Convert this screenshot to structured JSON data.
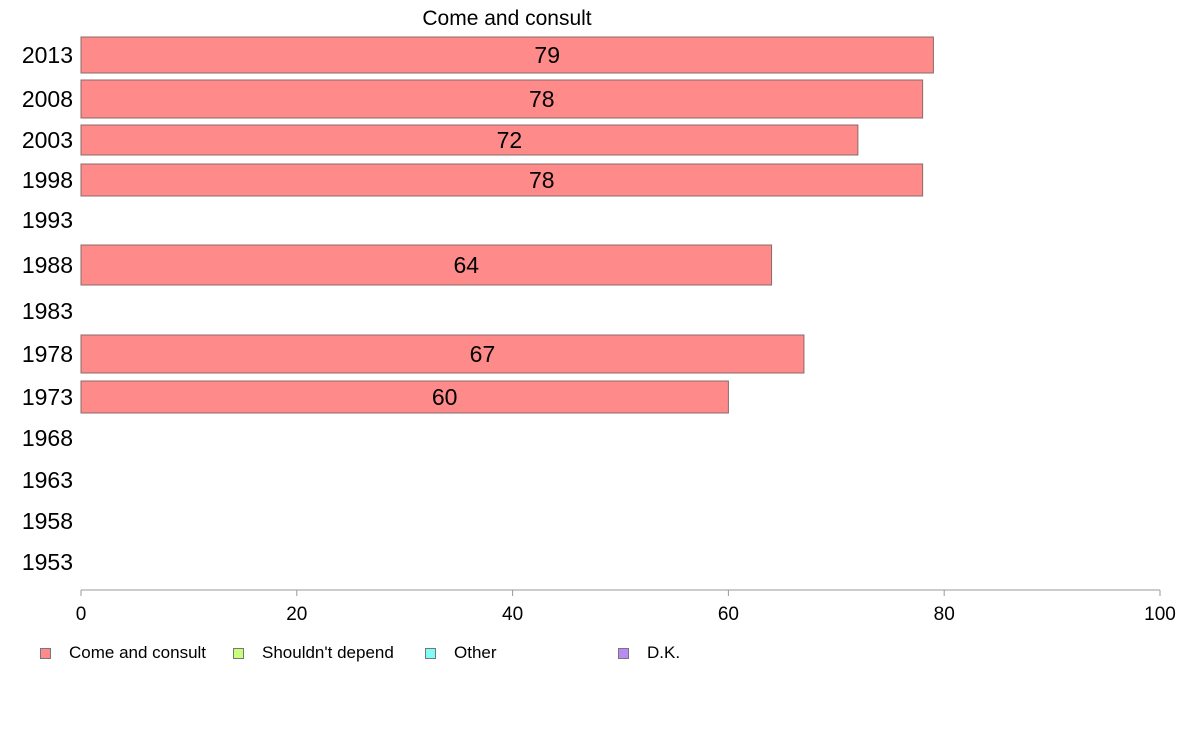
{
  "chart_data": {
    "type": "bar",
    "orientation": "horizontal",
    "title": "Come and consult",
    "categories": [
      "2013",
      "2008",
      "2003",
      "1998",
      "1993",
      "1988",
      "1983",
      "1978",
      "1973",
      "1968",
      "1963",
      "1958",
      "1953"
    ],
    "series": [
      {
        "name": "Come and consult",
        "color": "#ff8a8a",
        "values": [
          79,
          78,
          72,
          78,
          null,
          64,
          null,
          67,
          60,
          null,
          null,
          null,
          null
        ],
        "labels": [
          "79",
          "78",
          "72",
          "78",
          "",
          "64",
          "",
          "67",
          "60",
          "",
          "",
          "",
          ""
        ]
      }
    ],
    "xlim": [
      0,
      100
    ],
    "xticks": [
      "0",
      "20",
      "40",
      "60",
      "80",
      "100"
    ],
    "grid": false,
    "legend": {
      "placement": "bottom",
      "entries": [
        {
          "label": "Come and consult",
          "color": "#ff8a8a"
        },
        {
          "label": "Shouldn't depend",
          "color": "#c8ff7a"
        },
        {
          "label": "Other",
          "color": "#80fbf5"
        },
        {
          "label": "D.K.",
          "color": "#b98af5"
        }
      ]
    }
  }
}
